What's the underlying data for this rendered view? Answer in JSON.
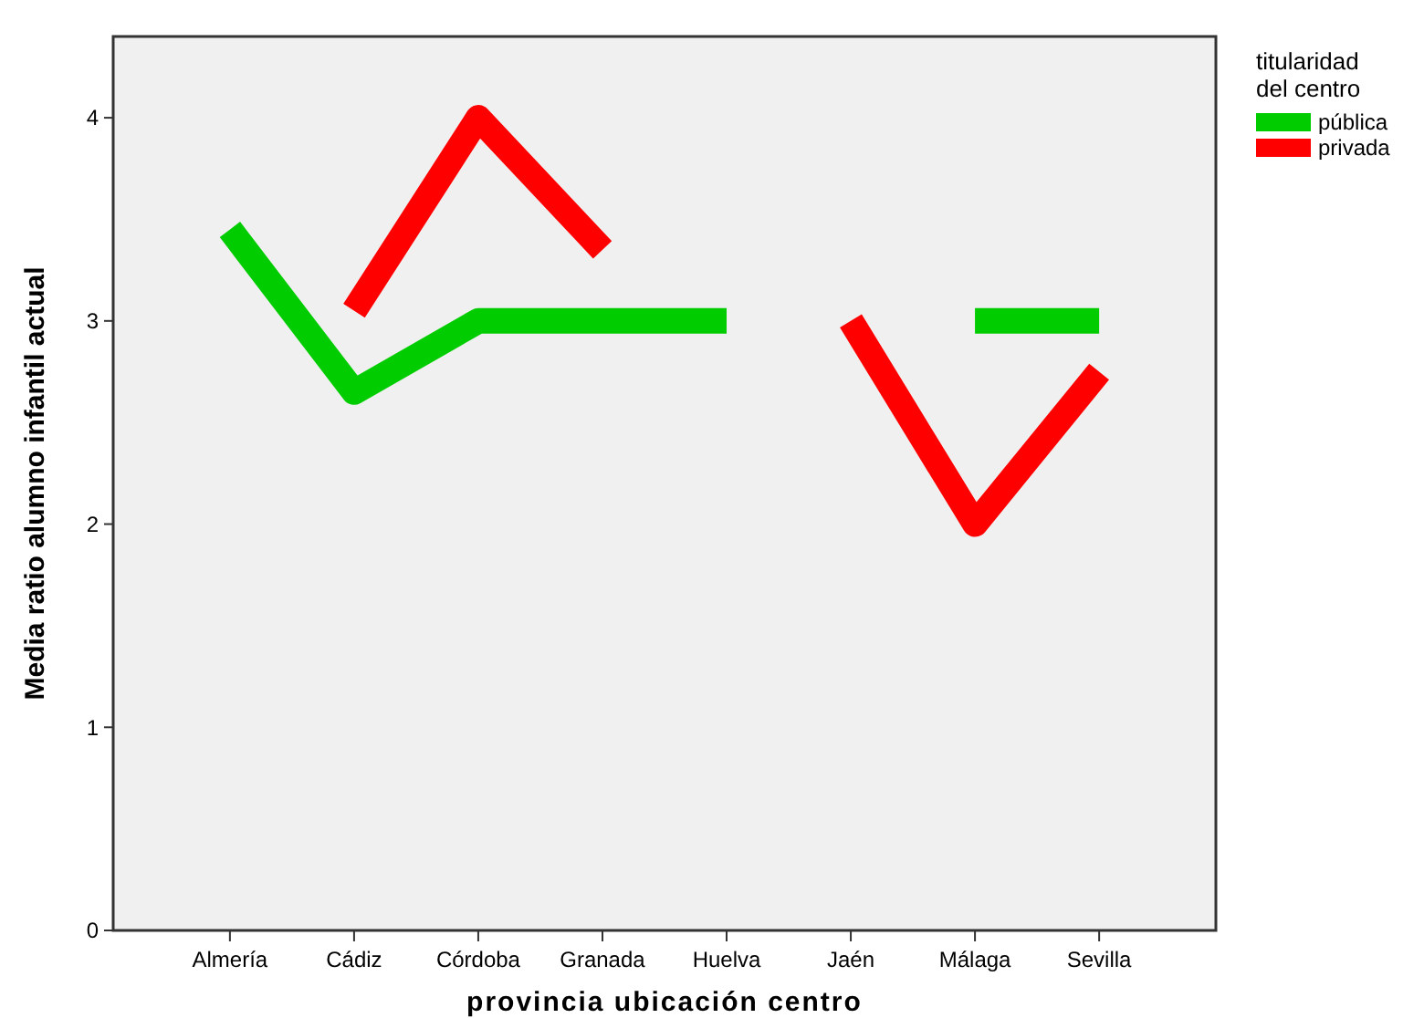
{
  "chart_data": {
    "type": "line",
    "xlabel": "provincia ubicación centro",
    "ylabel": "Media ratio alumno infantil actual",
    "legend_title": "titularidad del centro",
    "legend": "top right",
    "grid": false,
    "marker": "none",
    "line_style": "solid",
    "categories": [
      "Almería",
      "Cádiz",
      "Córdoba",
      "Granada",
      "Huelva",
      "Jaén",
      "Málaga",
      "Sevilla"
    ],
    "ylim": [
      0,
      4.4
    ],
    "yticks": [
      0,
      1,
      2,
      3,
      4
    ],
    "series": [
      {
        "name": "pública",
        "color": "#00cc00",
        "values": [
          3.45,
          2.65,
          3.0,
          3.0,
          3.0,
          null,
          3.0,
          3.0
        ]
      },
      {
        "name": "privada",
        "color": "#ff0000",
        "values": [
          null,
          3.05,
          4.0,
          3.35,
          null,
          3.0,
          2.0,
          2.75
        ]
      }
    ]
  }
}
